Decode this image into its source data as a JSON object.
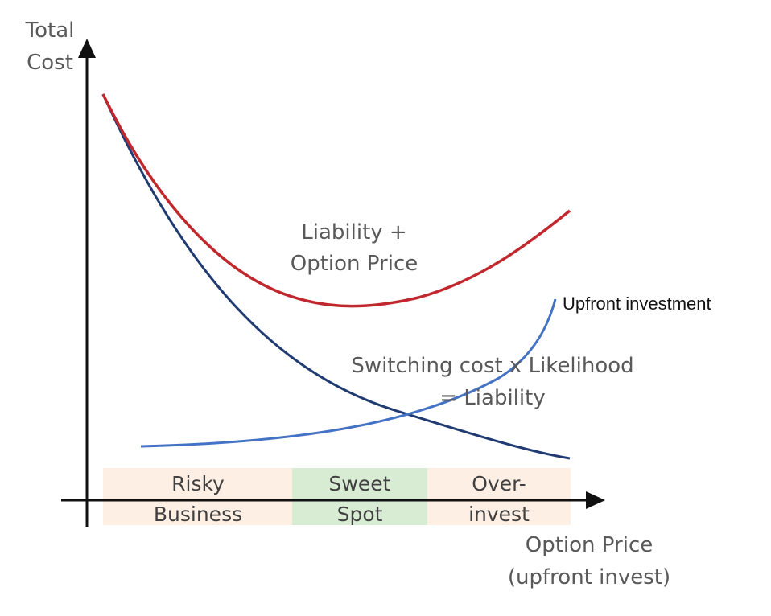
{
  "axes": {
    "y_label": [
      "Total",
      "Cost"
    ],
    "x_label": [
      "Option Price",
      "(upfront invest)"
    ]
  },
  "zones": [
    {
      "lines": [
        "Risky",
        "Business"
      ],
      "color": "#fdefe4"
    },
    {
      "lines": [
        "Sweet",
        "Spot"
      ],
      "color": "#d8ebd3"
    },
    {
      "lines": [
        "Over-",
        "invest"
      ],
      "color": "#fdefe4"
    }
  ],
  "curves": {
    "total": {
      "label": [
        "Liability +",
        "Option Price"
      ],
      "color": "#c0282d"
    },
    "liability": {
      "label": [
        "Switching cost x Likelihood",
        "= Liability"
      ],
      "color": "#203a72"
    },
    "upfront": {
      "label": "Upfront investment",
      "color": "#4472c4"
    }
  }
}
